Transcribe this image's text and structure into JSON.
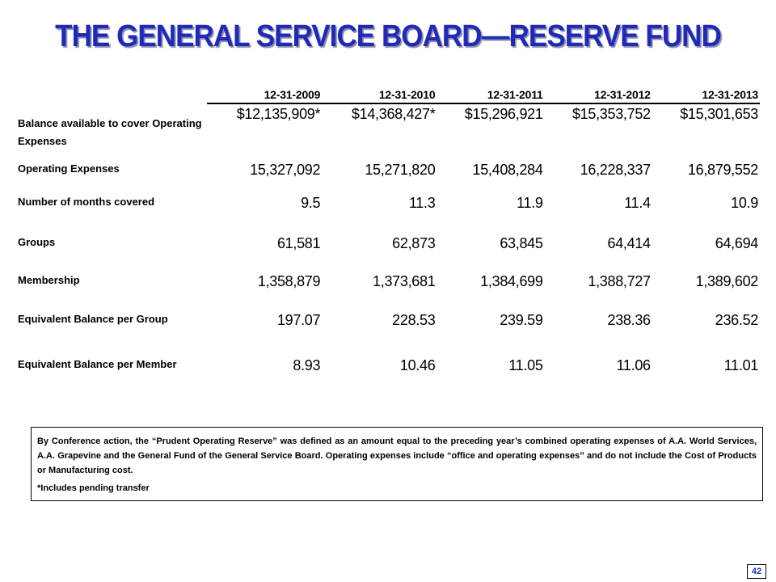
{
  "title": "THE GENERAL SERVICE BOARD—RESERVE FUND",
  "table": {
    "headers": [
      "12-31-2009",
      "12-31-2010",
      "12-31-2011",
      "12-31-2012",
      "12-31-2013"
    ],
    "rows": [
      {
        "label": "Balance available to cover Operating Expenses",
        "values": [
          "$12,135,909*",
          "$14,368,427*",
          "$15,296,921",
          "$15,353,752",
          "$15,301,653"
        ]
      },
      {
        "label": "Operating Expenses",
        "values": [
          "15,327,092",
          "15,271,820",
          "15,408,284",
          "16,228,337",
          "16,879,552"
        ]
      },
      {
        "label": "Number of months covered",
        "values": [
          "9.5",
          "11.3",
          "11.9",
          "11.4",
          "10.9"
        ]
      },
      {
        "label": "Groups",
        "values": [
          "61,581",
          "62,873",
          "63,845",
          "64,414",
          "64,694"
        ]
      },
      {
        "label": "Membership",
        "values": [
          "1,358,879",
          "1,373,681",
          "1,384,699",
          "1,388,727",
          "1,389,602"
        ]
      },
      {
        "label": "Equivalent Balance per Group",
        "values": [
          "197.07",
          "228.53",
          "239.59",
          "238.36",
          "236.52"
        ]
      },
      {
        "label": "Equivalent Balance per Member",
        "values": [
          "8.93",
          "10.46",
          "11.05",
          "11.06",
          "11.01"
        ]
      }
    ]
  },
  "note": {
    "text": "By Conference action, the “Prudent Operating Reserve” was defined as an amount equal to the preceding year’s combined operating expenses of A.A. World Services, A.A. Grapevine and the General Fund of the General Service Board.  Operating expenses include “office and operating expenses” and do not include the Cost of Products or Manufacturing cost.",
    "footnote": "*Includes pending transfer"
  },
  "page_number": "42",
  "colors": {
    "title": "#1f2bb8",
    "page_number": "#1f2bb8"
  }
}
